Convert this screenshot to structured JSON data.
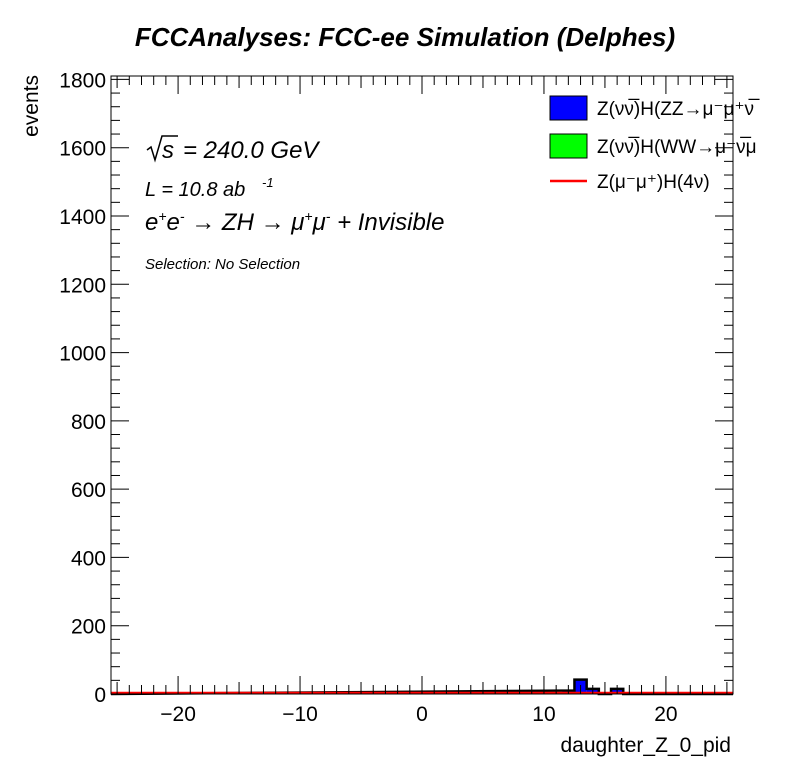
{
  "chart_data": {
    "type": "bar",
    "title": "FCCAnalyses: FCC-ee Simulation (Delphes)",
    "xlabel": "daughter_Z_0_pid",
    "ylabel": "events",
    "xlim": [
      -25.5,
      25.5
    ],
    "ylim": [
      0,
      1810
    ],
    "x_ticks": [
      -20,
      -10,
      0,
      10,
      20
    ],
    "x_tick_labels": [
      "−20",
      "−10",
      "0",
      "10",
      "20"
    ],
    "y_ticks": [
      0,
      200,
      400,
      600,
      800,
      1000,
      1200,
      1400,
      1600,
      1800
    ],
    "y_tick_labels": [
      "0",
      "200",
      "400",
      "600",
      "800",
      "1000",
      "1200",
      "1400",
      "1600",
      "1800"
    ],
    "annotations": {
      "sqrt_s": "= 240.0 GeV",
      "lumi": "L = 10.8 ab",
      "lumi_exp": "-1",
      "selection": "Selection: No Selection"
    },
    "series": [
      {
        "name": "Z(νν̅)H(ZZ→μ⁻μ⁺νν̅)",
        "legend_label": "Z(νν̅)H(ZZ→μ⁻μ⁺ν̅",
        "style": "fill",
        "color": "#0000ff",
        "bins": [
          {
            "x0": 11.5,
            "x1": 12.5,
            "value": 10
          },
          {
            "x0": 12.5,
            "x1": 13.5,
            "value": 42
          },
          {
            "x0": 13.5,
            "x1": 14.5,
            "value": 15
          },
          {
            "x0": 14.5,
            "x1": 15.5,
            "value": 0
          },
          {
            "x0": 15.5,
            "x1": 16.5,
            "value": 15
          }
        ]
      },
      {
        "name": "Z(νν̅)H(WW→μ⁻ν̅μ⁺ν)",
        "legend_label": "Z(νν̅)H(WW→μ⁻ν̅μ",
        "style": "fill",
        "color": "#00ff00",
        "bins": []
      },
      {
        "name": "Z(μ⁻μ⁺)H(4ν)",
        "legend_label": "Z(μ⁻μ⁺)H(4ν)",
        "style": "line",
        "color": "#ff0000",
        "bins": [
          {
            "x0": -25.5,
            "x1": 25.5,
            "value": 0
          }
        ]
      }
    ],
    "grid": false,
    "legend_position": "top-right"
  }
}
